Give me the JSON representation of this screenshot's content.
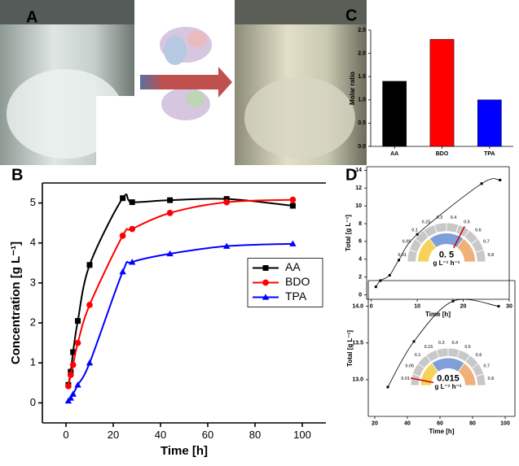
{
  "panel_labels": [
    "A",
    "B",
    "C",
    "D"
  ],
  "chart_data": [
    {
      "type": "line",
      "xlabel": "Time [h]",
      "ylabel": "Concentration [g L⁻¹]",
      "x": [
        1,
        2,
        3,
        5,
        10,
        24,
        28,
        44,
        68,
        96
      ],
      "series": [
        {
          "name": "AA",
          "color": "#000000",
          "marker": "square",
          "values": [
            0.45,
            0.78,
            1.27,
            2.05,
            3.45,
            5.12,
            5.02,
            5.07,
            5.1,
            4.93
          ]
        },
        {
          "name": "BDO",
          "color": "#ff0000",
          "marker": "circle",
          "values": [
            0.42,
            0.7,
            0.95,
            1.5,
            2.45,
            4.18,
            4.35,
            4.75,
            5.02,
            5.08
          ]
        },
        {
          "name": "TPA",
          "color": "#0000ff",
          "marker": "triangle",
          "values": [
            0.05,
            0.12,
            0.22,
            0.45,
            1.0,
            3.28,
            3.52,
            3.73,
            3.92,
            3.98
          ]
        }
      ],
      "xlim": [
        -10,
        110
      ],
      "xticks": [
        0,
        20,
        40,
        60,
        80,
        100
      ],
      "ylim": [
        -0.5,
        5.5
      ],
      "yticks": [
        0,
        1,
        2,
        3,
        4,
        5
      ],
      "legend": "center right"
    },
    {
      "type": "bar",
      "ylabel": "Molar ratio",
      "categories": [
        "AA",
        "BDO",
        "TPA"
      ],
      "values": [
        1.4,
        2.3,
        1.0
      ],
      "colors": [
        "#000000",
        "#ff0000",
        "#0000ff"
      ],
      "ylim": [
        0,
        2.5
      ],
      "yticks": [
        {
          "value": 0,
          "label": "0.0"
        },
        0.5,
        {
          "value": 1,
          "label": "1.0"
        },
        1.5,
        {
          "value": 2,
          "label": "2.0"
        },
        2.5
      ]
    },
    {
      "type": "line",
      "xlabel": "Time [h]",
      "ylabel": "Total [g L⁻¹]",
      "x": [
        1,
        2,
        4,
        6,
        10,
        24,
        28
      ],
      "values": [
        0.9,
        1.6,
        2.2,
        3.9,
        6.8,
        12.5,
        12.9
      ],
      "color": "#000000",
      "xlim": [
        -1,
        30
      ],
      "xticks": [
        0,
        10,
        20,
        30
      ],
      "ylim": [
        -0.5,
        14.4
      ],
      "yticks": [
        0,
        2,
        4,
        6,
        8,
        10,
        12,
        14
      ],
      "gauge": {
        "value": 0.5,
        "value_label": "0. 5",
        "unit": "g L⁻¹ h⁻¹",
        "ticks": [
          0.01,
          0.05,
          0.1,
          0.15,
          0.3,
          0.4,
          0.5,
          0.6,
          0.7,
          0.8
        ]
      }
    },
    {
      "type": "line",
      "xlabel": "Time [h]",
      "ylabel": "Total [g L⁻¹]",
      "x": [
        28,
        44,
        68,
        96
      ],
      "values": [
        12.9,
        13.52,
        14.07,
        14.0
      ],
      "color": "#000000",
      "xlim": [
        16,
        106
      ],
      "xticks": [
        20,
        40,
        60,
        80,
        100
      ],
      "ylim": [
        12.5,
        14.35
      ],
      "yticks": [
        {
          "value": 13,
          "label": "13.0"
        },
        13.5,
        {
          "value": 14,
          "label": "14.0"
        }
      ],
      "gauge": {
        "value": 0.015,
        "value_label": "0.015",
        "unit": "g L⁻¹ h⁻¹",
        "ticks": [
          0.01,
          0.05,
          0.1,
          0.15,
          0.3,
          0.4,
          0.5,
          0.6,
          0.7,
          0.8
        ]
      }
    }
  ]
}
